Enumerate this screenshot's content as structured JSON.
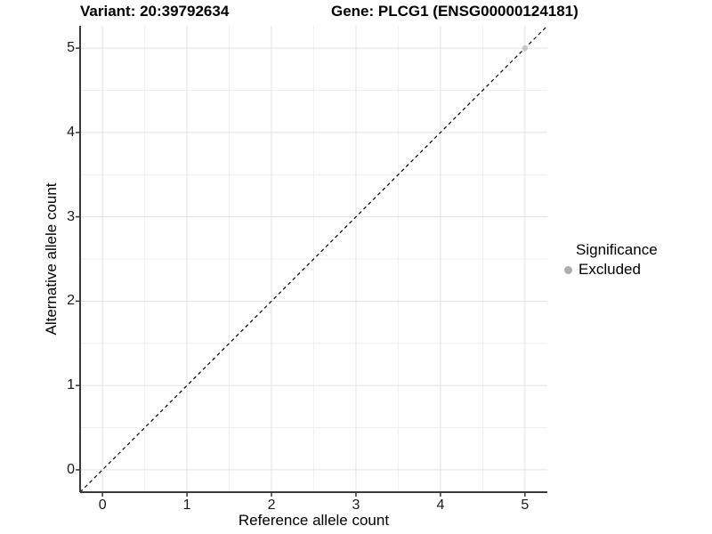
{
  "header": {
    "variant_title": "Variant: 20:39792634",
    "gene_title": "Gene: PLCG1 (ENSG00000124181)"
  },
  "chart_data": {
    "type": "scatter",
    "title_variant": "Variant: 20:39792634",
    "title_gene": "Gene: PLCG1 (ENSG00000124181)",
    "xlabel": "Reference allele count",
    "ylabel": "Alternative allele count",
    "xlim": [
      -0.265,
      5.265
    ],
    "ylim": [
      -0.265,
      5.265
    ],
    "x_ticks": [
      0,
      1,
      2,
      3,
      4,
      5
    ],
    "y_ticks": [
      0,
      1,
      2,
      3,
      4,
      5
    ],
    "grid": {
      "major": true,
      "minor": true
    },
    "identity_line": {
      "style": "dashed",
      "slope": 1,
      "intercept": 0
    },
    "points": [
      {
        "x": 5,
        "y": 5,
        "series": "Excluded"
      }
    ],
    "legend": {
      "title": "Significance",
      "position": "right",
      "entries": [
        {
          "label": "Excluded",
          "color": "#adadad"
        }
      ]
    },
    "colors": {
      "point": "#c6c6c6",
      "major_grid": "#e2e2e2",
      "minor_grid": "#efefef",
      "axis_line": "#3b3b3b",
      "tick_mark": "#333333",
      "dashed_line": "#000000",
      "background": "#ffffff"
    }
  }
}
